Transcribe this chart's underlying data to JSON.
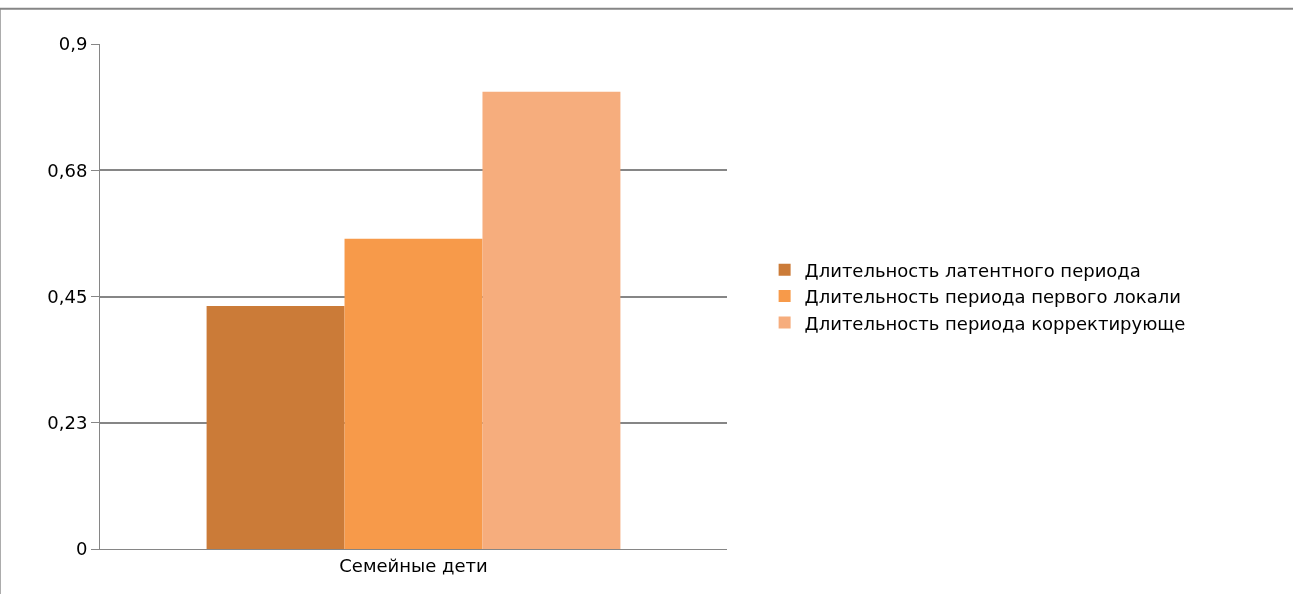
{
  "chart_data": {
    "type": "bar",
    "categories": [
      "Семейные дети"
    ],
    "series": [
      {
        "name": "Длительность латентного периода",
        "color": "#cb7b38",
        "values": [
          0.433
        ]
      },
      {
        "name": "Длительность периода первого локали",
        "color": "#f79a4a",
        "values": [
          0.553
        ]
      },
      {
        "name": "Длительность периода корректирующе",
        "color": "#f6ad7d",
        "values": [
          0.815
        ]
      }
    ],
    "ylim": [
      0,
      0.9
    ],
    "yticks": [
      0,
      {
        "value": 0.225,
        "label": "0,23"
      },
      {
        "value": 0.45,
        "label": "0,45"
      },
      {
        "value": 0.675,
        "label": "0,68"
      },
      {
        "value": 0.9,
        "label": "0,9"
      }
    ],
    "grid": "y",
    "legend": "right"
  }
}
